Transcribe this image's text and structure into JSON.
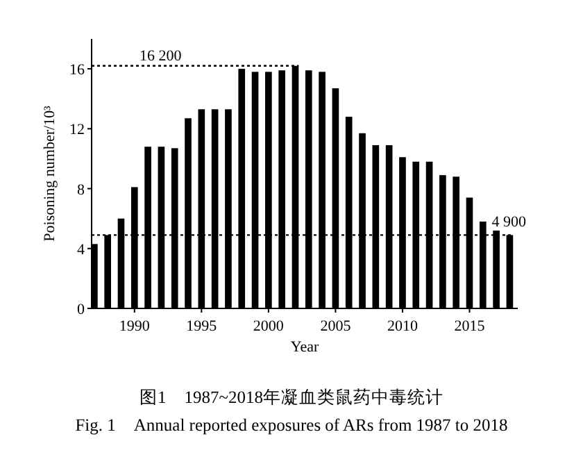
{
  "chart_data": {
    "type": "bar",
    "xlabel": "Year",
    "ylabel": "Poisoning number/10³",
    "x": [
      1987,
      1988,
      1989,
      1990,
      1991,
      1992,
      1993,
      1994,
      1995,
      1996,
      1997,
      1998,
      1999,
      2000,
      2001,
      2002,
      2003,
      2004,
      2005,
      2006,
      2007,
      2008,
      2009,
      2010,
      2011,
      2012,
      2013,
      2014,
      2015,
      2016,
      2017,
      2018
    ],
    "values": [
      4.3,
      4.9,
      6.0,
      8.1,
      10.8,
      10.8,
      10.7,
      12.7,
      13.3,
      13.3,
      13.3,
      16.0,
      15.8,
      15.8,
      15.9,
      16.2,
      15.9,
      15.8,
      14.7,
      12.8,
      11.7,
      10.9,
      10.9,
      10.1,
      9.8,
      9.8,
      8.9,
      8.8,
      7.4,
      5.8,
      5.2,
      4.9
    ],
    "color": "#000000",
    "xlim": [
      1986.8,
      2018.6
    ],
    "ylim": [
      0,
      18
    ],
    "xticks": [
      1990,
      1995,
      2000,
      2005,
      2010,
      2015
    ],
    "yticks": [
      0,
      4,
      8,
      12,
      16
    ],
    "grid": false,
    "ref_lines": [
      {
        "axis": "y",
        "value": 16.2,
        "label": "16 200",
        "color": "#000000",
        "line_style": "dotted"
      },
      {
        "axis": "y",
        "value": 4.9,
        "label": "4 900",
        "color": "#000000",
        "line_style": "dotted"
      }
    ],
    "annotations": [
      "图1　1987~2018年凝血类鼠药中毒统计",
      "Fig. 1　Annual reported exposures of ARs from 1987 to 2018"
    ]
  }
}
